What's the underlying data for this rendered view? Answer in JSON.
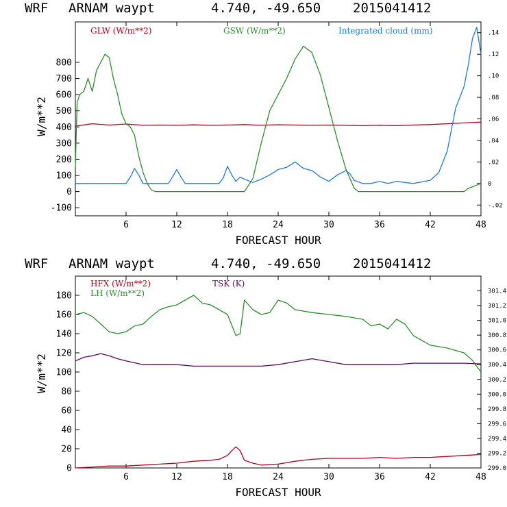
{
  "colors": {
    "red": "#b0001e",
    "green": "#2e8b2e",
    "blue": "#1e7ad2",
    "purple": "#550a55"
  },
  "chart_data": [
    {
      "type": "line",
      "header": {
        "model": "WRF",
        "station": "ARNAM waypt",
        "coords": "4.740, -49.650",
        "init": "2015041412"
      },
      "xlabel": "FORECAST HOUR",
      "ylabel": "W/m**2",
      "xlim": [
        0,
        48
      ],
      "ylim": [
        -150,
        1050
      ],
      "y2lim": [
        -0.03,
        0.15
      ],
      "xticks": [
        "6",
        "12",
        "18",
        "24",
        "30",
        "36",
        "42",
        "48"
      ],
      "yticks": [
        "-100",
        "0",
        "100",
        "200",
        "300",
        "400",
        "500",
        "600",
        "700",
        "800"
      ],
      "y2ticks": [
        "-.02",
        "0",
        ".02",
        ".04",
        ".06",
        ".08",
        ".10",
        ".12",
        ".14"
      ],
      "series": [
        {
          "name": "GLW (W/m**2)",
          "color": "red",
          "axis": "left",
          "x": [
            0,
            2,
            4,
            6,
            8,
            10,
            12,
            14,
            16,
            18,
            20,
            22,
            24,
            26,
            28,
            30,
            32,
            34,
            36,
            38,
            40,
            42,
            44,
            46,
            48
          ],
          "y": [
            405,
            420,
            412,
            418,
            410,
            412,
            410,
            413,
            410,
            412,
            415,
            410,
            414,
            412,
            410,
            412,
            410,
            408,
            410,
            408,
            412,
            415,
            420,
            425,
            430
          ]
        },
        {
          "name": "GSW (W/m**2)",
          "color": "green",
          "axis": "left",
          "x": [
            0,
            0.2,
            0.5,
            1,
            1.5,
            2,
            2.5,
            3,
            3.5,
            4,
            4.5,
            5,
            5.5,
            6,
            6.5,
            7,
            7.5,
            8,
            8.5,
            9,
            9.5,
            20,
            21,
            22,
            23,
            24,
            25,
            26,
            27,
            28,
            29,
            30,
            31,
            32,
            33,
            33.5,
            46,
            46.5,
            47,
            47.5,
            48
          ],
          "y": [
            150,
            550,
            600,
            620,
            700,
            620,
            750,
            800,
            850,
            830,
            700,
            600,
            480,
            420,
            400,
            350,
            220,
            120,
            50,
            10,
            0,
            0,
            80,
            300,
            500,
            600,
            700,
            820,
            900,
            860,
            720,
            520,
            320,
            140,
            20,
            0,
            0,
            20,
            30,
            40,
            50
          ]
        },
        {
          "name": "Integrated cloud (mm)",
          "color": "blue",
          "axis": "right",
          "x": [
            0,
            6,
            6.5,
            7,
            7.5,
            8,
            11,
            11.5,
            12,
            12.5,
            13,
            17,
            17.5,
            18,
            18.5,
            19,
            19.5,
            20,
            21,
            22,
            23,
            24,
            25,
            26,
            27,
            28,
            29,
            30,
            31,
            32,
            32.5,
            33,
            34,
            35,
            36,
            37,
            38,
            40,
            42,
            43,
            44,
            45,
            46,
            46.5,
            47,
            47.5,
            48
          ],
          "y": [
            0,
            0,
            0.006,
            0.014,
            0.008,
            0,
            0,
            0.006,
            0.013,
            0.006,
            0,
            0,
            0.005,
            0.016,
            0.008,
            0.002,
            0.006,
            0.004,
            0.001,
            0.004,
            0.008,
            0.013,
            0.015,
            0.02,
            0.014,
            0.012,
            0.006,
            0.002,
            0.008,
            0.012,
            0.009,
            0.003,
            0,
            0,
            0.002,
            0,
            0.002,
            0,
            0.003,
            0.01,
            0.03,
            0.07,
            0.09,
            0.11,
            0.135,
            0.145,
            0.12
          ]
        }
      ]
    },
    {
      "type": "line",
      "header": {
        "model": "WRF",
        "station": "ARNAM waypt",
        "coords": "4.740, -49.650",
        "init": "2015041412"
      },
      "xlabel": "FORECAST HOUR",
      "ylabel": "W/m**2",
      "xlim": [
        0,
        48
      ],
      "ylim": [
        0,
        200
      ],
      "y2lim": [
        299.0,
        301.6
      ],
      "xticks": [
        "6",
        "12",
        "18",
        "24",
        "30",
        "36",
        "42",
        "48"
      ],
      "yticks": [
        "0",
        "20",
        "40",
        "60",
        "80",
        "100",
        "120",
        "140",
        "160",
        "180"
      ],
      "y2ticks": [
        "299.0",
        "299.2",
        "299.4",
        "299.6",
        "299.8",
        "300.0",
        "300.2",
        "300.4",
        "300.6",
        "300.8",
        "301.0",
        "301.2",
        "301.4"
      ],
      "series": [
        {
          "name": "HFX (W/m**2)",
          "color": "red",
          "axis": "left",
          "x": [
            0,
            2,
            4,
            6,
            8,
            10,
            12,
            14,
            16,
            17,
            18,
            18.5,
            19,
            19.5,
            20,
            21,
            22,
            24,
            26,
            28,
            30,
            32,
            34,
            36,
            38,
            40,
            42,
            44,
            46,
            48
          ],
          "y": [
            0,
            1,
            2,
            2,
            3,
            4,
            5,
            7,
            8,
            9,
            13,
            18,
            22,
            18,
            8,
            5,
            3,
            4,
            7,
            9,
            10,
            10,
            10,
            11,
            10,
            11,
            11,
            12,
            13,
            14
          ]
        },
        {
          "name": "LH (W/m**2)",
          "color": "green",
          "axis": "left",
          "x": [
            0,
            1,
            2,
            3,
            4,
            5,
            6,
            7,
            8,
            9,
            10,
            11,
            12,
            13,
            14,
            15,
            16,
            17,
            18,
            19,
            19.5,
            20,
            21,
            22,
            23,
            24,
            25,
            26,
            28,
            30,
            32,
            34,
            35,
            36,
            37,
            38,
            39,
            40,
            42,
            44,
            46,
            47,
            48
          ],
          "y": [
            160,
            162,
            158,
            150,
            142,
            140,
            142,
            148,
            150,
            158,
            165,
            168,
            170,
            175,
            180,
            172,
            170,
            165,
            160,
            138,
            140,
            175,
            165,
            160,
            162,
            175,
            172,
            165,
            162,
            160,
            158,
            155,
            148,
            150,
            145,
            155,
            150,
            138,
            128,
            125,
            120,
            112,
            100
          ]
        },
        {
          "name": "TSK (K)",
          "color": "purple",
          "axis": "right",
          "x": [
            0,
            1,
            2,
            3,
            4,
            5,
            6,
            8,
            10,
            12,
            14,
            16,
            18,
            20,
            22,
            24,
            26,
            28,
            30,
            32,
            34,
            36,
            38,
            40,
            42,
            44,
            46,
            48
          ],
          "y": [
            300.45,
            300.5,
            300.52,
            300.55,
            300.52,
            300.48,
            300.45,
            300.4,
            300.4,
            300.4,
            300.38,
            300.38,
            300.38,
            300.38,
            300.38,
            300.4,
            300.44,
            300.48,
            300.44,
            300.4,
            300.4,
            300.4,
            300.4,
            300.42,
            300.42,
            300.42,
            300.42,
            300.41
          ]
        }
      ]
    }
  ]
}
